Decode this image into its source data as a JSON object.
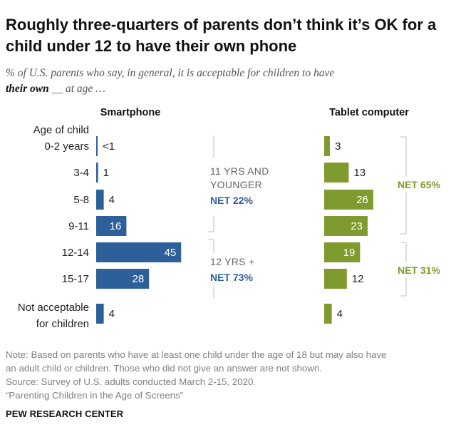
{
  "title": "Roughly three-quarters of parents don’t think it’s OK for a child under 12 to have their own phone",
  "subtitle": {
    "pre": "% of U.S. parents who say, in general, it is acceptable for children to have",
    "bold": "their own",
    "post": "__ at age …"
  },
  "notes": [
    "Note: Based on parents who have at least one child under the age of 18 but may also have",
    "an adult child or children. Those who did not give an answer are not shown.",
    "Source: Survey of U.S. adults conducted March 2-15, 2020.",
    "“Parenting Children in the Age of Screens”"
  ],
  "brand": "PEW RESEARCH CENTER",
  "colors": {
    "smartphone": "#2d5f9a",
    "tablet": "#7f9a2e",
    "axis": "#bfbfbf",
    "label_dark": "#222222"
  },
  "chart_data": {
    "type": "bar",
    "orientation": "horizontal",
    "row_header": "Age of child",
    "categories": [
      "0-2 years",
      "3-4",
      "5-8",
      "9-11",
      "12-14",
      "15-17",
      "Not acceptable for children"
    ],
    "series": [
      {
        "name": "Smartphone",
        "values": [
          0.5,
          1,
          4,
          16,
          45,
          28,
          4
        ],
        "labels": [
          "<1",
          "1",
          "4",
          "16",
          "45",
          "28",
          "4"
        ]
      },
      {
        "name": "Tablet computer",
        "values": [
          3,
          13,
          26,
          23,
          19,
          12,
          4
        ],
        "labels": [
          "3",
          "13",
          "26",
          "23",
          "19",
          "12",
          "4"
        ]
      }
    ],
    "groups": {
      "smartphone": [
        {
          "lines": [
            "11 YRS AND",
            "YOUNGER"
          ],
          "net": "NET 22%",
          "rows": [
            0,
            3
          ]
        },
        {
          "lines": [
            "12 YRS +"
          ],
          "net": "NET 73%",
          "rows": [
            4,
            5
          ]
        }
      ],
      "tablet": [
        {
          "net": "NET 65%",
          "rows": [
            0,
            3
          ]
        },
        {
          "net": "NET 31%",
          "rows": [
            4,
            5
          ]
        }
      ]
    },
    "xlim": [
      0,
      100
    ]
  }
}
